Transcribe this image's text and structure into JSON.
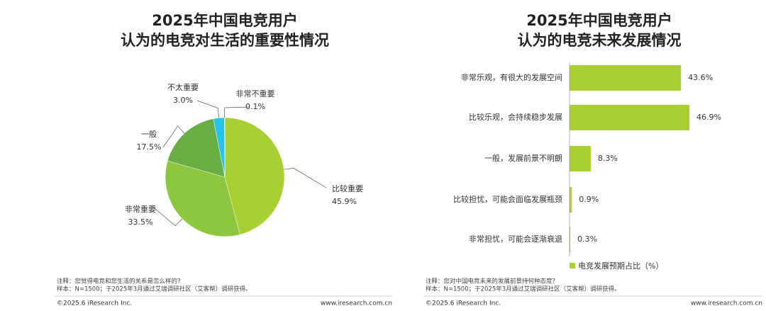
{
  "chart_data": [
    {
      "type": "pie",
      "title": [
        "2025年中国电竞用户",
        "认为的电竞对生活的重要性情况"
      ],
      "categories": [
        "比较重要",
        "非常重要",
        "一般",
        "不太重要",
        "非常不重要"
      ],
      "values": [
        45.9,
        33.5,
        17.5,
        3.0,
        0.1
      ],
      "value_labels": [
        "45.9%",
        "33.5%",
        "17.5%",
        "3.0%",
        "0.1%"
      ],
      "colors": [
        "#a8d032",
        "#8dc63f",
        "#69ad45",
        "#26c4ea",
        "#1a8fd6"
      ],
      "notes": [
        "注释：您觉得电竞和您生活的关系是怎么样的？",
        "样本：N=1500；于2025年3月通过艾瑞调研社区（艾客帮）调研获得。"
      ],
      "copyright": "©2025.6 iResearch Inc.",
      "website": "www.iresearch.com.cn"
    },
    {
      "type": "bar",
      "orientation": "horizontal",
      "title": [
        "2025年中国电竞用户",
        "认为的电竞未来发展情况"
      ],
      "categories": [
        "非常乐观，有很大的发展空间",
        "比较乐观，会持续稳步发展",
        "一般，发展前景不明朗",
        "比较担忧，可能会面临发展瓶颈",
        "非常担忧，可能会逐渐衰退"
      ],
      "series": [
        {
          "name": "电竞发展预期占比（%）",
          "color": "#a8d032",
          "values": [
            43.6,
            46.9,
            8.3,
            0.9,
            0.3
          ],
          "value_labels": [
            "43.6%",
            "46.9%",
            "8.3%",
            "0.9%",
            "0.3%"
          ]
        }
      ],
      "notes": [
        "注释：您对中国电竞未来的发展前景持何种态度？",
        "样本：N=1500；于2025年3月通过艾瑞调研社区（艾客帮）调研获得。"
      ],
      "copyright": "©2025.6 iResearch Inc.",
      "website": "www.iresearch.com.cn"
    }
  ]
}
